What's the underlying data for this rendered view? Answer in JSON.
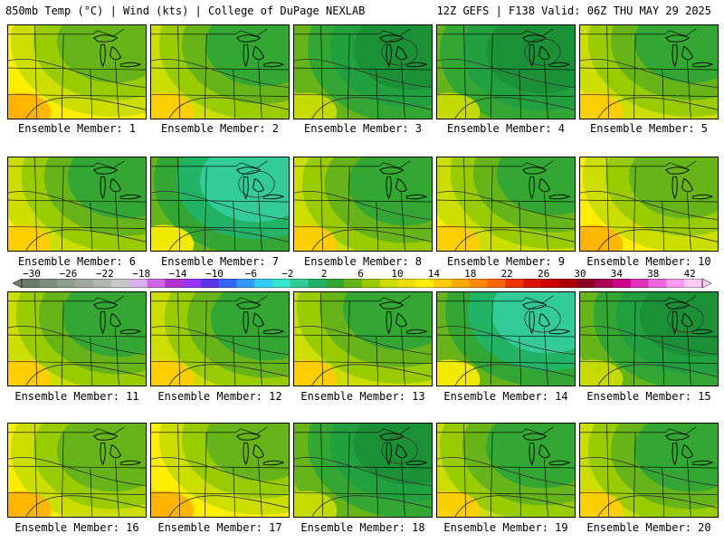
{
  "header": {
    "left": "850mb Temp (°C) | Wind (kts) | College of DuPage NEXLAB",
    "right": "12Z GEFS | F138 Valid: 06Z THU MAY 29 2025"
  },
  "members": [
    {
      "caption": "Ensemble Member: 1",
      "scheme": "warm"
    },
    {
      "caption": "Ensemble Member: 2",
      "scheme": "mild"
    },
    {
      "caption": "Ensemble Member: 3",
      "scheme": "cool"
    },
    {
      "caption": "Ensemble Member: 4",
      "scheme": "cool"
    },
    {
      "caption": "Ensemble Member: 5",
      "scheme": "mild"
    },
    {
      "caption": "Ensemble Member: 6",
      "scheme": "mild"
    },
    {
      "caption": "Ensemble Member: 7",
      "scheme": "cold"
    },
    {
      "caption": "Ensemble Member: 8",
      "scheme": "mild"
    },
    {
      "caption": "Ensemble Member: 9",
      "scheme": "mild"
    },
    {
      "caption": "Ensemble Member: 10",
      "scheme": "warm"
    },
    {
      "caption": "Ensemble Member: 11",
      "scheme": "mild"
    },
    {
      "caption": "Ensemble Member: 12",
      "scheme": "mild"
    },
    {
      "caption": "Ensemble Member: 13",
      "scheme": "mild"
    },
    {
      "caption": "Ensemble Member: 14",
      "scheme": "cold"
    },
    {
      "caption": "Ensemble Member: 15",
      "scheme": "cool"
    },
    {
      "caption": "Ensemble Member: 16",
      "scheme": "warm"
    },
    {
      "caption": "Ensemble Member: 17",
      "scheme": "warm"
    },
    {
      "caption": "Ensemble Member: 18",
      "scheme": "cool"
    },
    {
      "caption": "Ensemble Member: 19",
      "scheme": "mild"
    },
    {
      "caption": "Ensemble Member: 20",
      "scheme": "mild"
    }
  ],
  "colorbar": {
    "labels": [
      "−30",
      "−26",
      "−22",
      "−18",
      "−14",
      "−10",
      "−6",
      "−2",
      "2",
      "6",
      "10",
      "14",
      "18",
      "22",
      "26",
      "30",
      "34",
      "38",
      "42"
    ],
    "colors": [
      "#6a7a6a",
      "#7f8f7f",
      "#8f9f8f",
      "#a0a8a0",
      "#b0b8b0",
      "#c8c8c8",
      "#d9b3f0",
      "#cf66e6",
      "#b233cc",
      "#9933ff",
      "#5c33e6",
      "#3366ff",
      "#3399ff",
      "#33ccff",
      "#33e6cc",
      "#33cc99",
      "#22b366",
      "#33a633",
      "#66b31a",
      "#99cc00",
      "#ccdd00",
      "#eedd00",
      "#ffee00",
      "#ffcc00",
      "#ffaa00",
      "#ff8800",
      "#ff6600",
      "#ee3300",
      "#dd1100",
      "#cc0000",
      "#aa0000",
      "#880022",
      "#aa0055",
      "#cc0088",
      "#dd33bb",
      "#ee66dd",
      "#ff99ee",
      "#ffccf5"
    ]
  }
}
